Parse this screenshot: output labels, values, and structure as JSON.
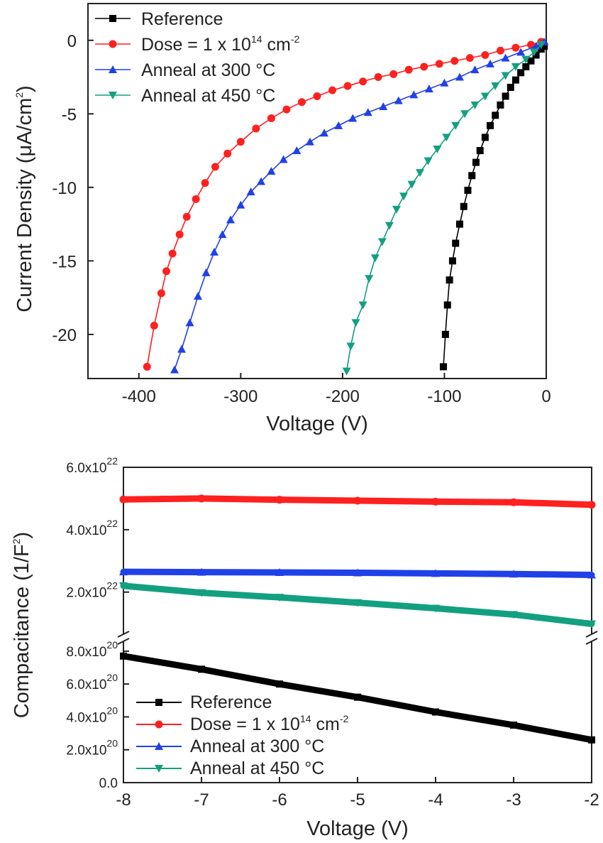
{
  "colors": {
    "reference": "#000000",
    "dose": "#ff2020",
    "anneal300": "#2040e8",
    "anneal450": "#12a080"
  },
  "chart_data": [
    {
      "type": "scatter",
      "xlabel": "Voltage (V)",
      "ylabel_main": "Current Density (μA/cm",
      "ylabel_sup": "2",
      "ylabel_tail": ")",
      "xlim": [
        -450,
        0
      ],
      "ylim": [
        -23,
        2.5
      ],
      "xticks": [
        -400,
        -300,
        -200,
        -100,
        0
      ],
      "xtick_labels": [
        "-400",
        "-300",
        "-200",
        "-100",
        "0"
      ],
      "yticks": [
        0,
        -5,
        -10,
        -15,
        -20
      ],
      "ytick_labels": [
        "0",
        "-5",
        "-10",
        "-15",
        "-20"
      ],
      "legend_position": "top-left",
      "legend": [
        {
          "text": "Reference",
          "sup": "",
          "tail": ""
        },
        {
          "text": "Dose = 1 x 10",
          "sup": "14",
          "tail": " cm",
          "sup2": "-2"
        },
        {
          "text": "Anneal at 300 °C",
          "sup": "",
          "tail": ""
        },
        {
          "text": "Anneal at 450 °C",
          "sup": "",
          "tail": ""
        }
      ],
      "series": [
        {
          "name": "Reference",
          "color_key": "reference",
          "marker": "square",
          "x": [
            -101,
            -99,
            -97,
            -95,
            -92,
            -89,
            -85,
            -81,
            -77,
            -73,
            -69,
            -65,
            -60,
            -55,
            -50,
            -45,
            -40,
            -35,
            -30,
            -25,
            -20,
            -15,
            -10,
            -5,
            -2
          ],
          "y": [
            -22.2,
            -20,
            -18,
            -16.3,
            -15,
            -13.8,
            -12.5,
            -11.3,
            -10.2,
            -9.2,
            -8.3,
            -7.5,
            -6.6,
            -5.8,
            -5.1,
            -4.4,
            -3.8,
            -3.2,
            -2.7,
            -2.2,
            -1.8,
            -1.4,
            -1.0,
            -0.6,
            -0.4
          ]
        },
        {
          "name": "Dose = 1 x 10^14 cm^-2",
          "color_key": "dose",
          "marker": "circle",
          "x": [
            -392,
            -385,
            -378,
            -373,
            -367,
            -360,
            -353,
            -344,
            -335,
            -325,
            -313,
            -300,
            -285,
            -270,
            -255,
            -240,
            -225,
            -210,
            -195,
            -180,
            -165,
            -150,
            -135,
            -120,
            -105,
            -90,
            -75,
            -60,
            -45,
            -30,
            -15,
            -5
          ],
          "y": [
            -22.2,
            -19.4,
            -17.2,
            -15.7,
            -14.5,
            -13.2,
            -12.0,
            -10.8,
            -9.7,
            -8.6,
            -7.7,
            -6.9,
            -6.0,
            -5.3,
            -4.7,
            -4.2,
            -3.8,
            -3.4,
            -3.1,
            -2.8,
            -2.5,
            -2.3,
            -2.0,
            -1.8,
            -1.6,
            -1.4,
            -1.2,
            -1.0,
            -0.7,
            -0.5,
            -0.3,
            -0.1
          ]
        },
        {
          "name": "Anneal at 300 °C",
          "color_key": "anneal300",
          "marker": "triangle-up",
          "x": [
            -365,
            -358,
            -350,
            -342,
            -334,
            -326,
            -318,
            -310,
            -300,
            -290,
            -280,
            -270,
            -258,
            -245,
            -232,
            -218,
            -204,
            -190,
            -175,
            -160,
            -145,
            -130,
            -115,
            -100,
            -85,
            -70,
            -55,
            -40,
            -25,
            -10,
            -2
          ],
          "y": [
            -22.4,
            -21.0,
            -19.2,
            -17.4,
            -15.8,
            -14.4,
            -13.2,
            -12.2,
            -11.2,
            -10.3,
            -9.6,
            -8.9,
            -8.1,
            -7.5,
            -6.9,
            -6.3,
            -5.8,
            -5.3,
            -4.9,
            -4.5,
            -4.1,
            -3.7,
            -3.3,
            -2.9,
            -2.5,
            -2.0,
            -1.6,
            -1.2,
            -0.8,
            -0.4,
            -0.1
          ]
        },
        {
          "name": "Anneal at 450 °C",
          "color_key": "anneal450",
          "marker": "triangle-down",
          "x": [
            -196,
            -192,
            -187,
            -180,
            -174,
            -168,
            -161,
            -154,
            -147,
            -140,
            -132,
            -124,
            -116,
            -107,
            -98,
            -89,
            -80,
            -70,
            -60,
            -50,
            -40,
            -30,
            -20,
            -12,
            -5
          ],
          "y": [
            -22.5,
            -20.8,
            -19.2,
            -18.0,
            -16.2,
            -14.8,
            -13.7,
            -12.6,
            -11.5,
            -10.6,
            -9.8,
            -9.0,
            -8.2,
            -7.4,
            -6.6,
            -5.8,
            -5.0,
            -4.4,
            -3.8,
            -3.1,
            -2.4,
            -1.8,
            -1.3,
            -0.8,
            -0.3
          ]
        }
      ]
    },
    {
      "type": "scatter",
      "xlabel": "Voltage (V)",
      "ylabel_main": "Compacitance (1/F",
      "ylabel_sup": "2",
      "ylabel_tail": ")",
      "xlim": [
        -8,
        -2
      ],
      "xticks": [
        -8,
        -7,
        -6,
        -5,
        -4,
        -3,
        -2
      ],
      "xtick_labels": [
        "-8",
        "-7",
        "-6",
        "-5",
        "-4",
        "-3",
        "-2"
      ],
      "broken_y_axis": true,
      "upper_segment": {
        "ylim": [
          6.5e+21,
          6e+22
        ],
        "ticks": [
          2e+22,
          4e+22,
          6e+22
        ],
        "tick_labels": [
          {
            "base": "2.0x10",
            "exp": "22"
          },
          {
            "base": "4.0x10",
            "exp": "22"
          },
          {
            "base": "6.0x10",
            "exp": "22"
          }
        ]
      },
      "lower_segment": {
        "ylim": [
          0,
          8.6e+20
        ],
        "ticks": [
          0,
          2e+20,
          4e+20,
          6e+20,
          8e+20
        ],
        "tick_labels": [
          {
            "base": "0.0",
            "exp": ""
          },
          {
            "base": "2.0x10",
            "exp": "20"
          },
          {
            "base": "4.0x10",
            "exp": "20"
          },
          {
            "base": "6.0x10",
            "exp": "20"
          },
          {
            "base": "8.0x10",
            "exp": "20"
          }
        ]
      },
      "legend_position": "bottom-left",
      "legend": [
        {
          "text": "Reference",
          "sup": "",
          "tail": ""
        },
        {
          "text": "Dose = 1 x 10",
          "sup": "14",
          "tail": " cm",
          "sup2": "-2"
        },
        {
          "text": "Anneal at 300 °C",
          "sup": "",
          "tail": ""
        },
        {
          "text": "Anneal at 450 °C",
          "sup": "",
          "tail": ""
        }
      ],
      "series": [
        {
          "name": "Reference",
          "color_key": "reference",
          "marker": "square",
          "segment": "lower",
          "x": [
            -8,
            -7,
            -6,
            -5,
            -4,
            -3,
            -2
          ],
          "y": [
            7.7e+20,
            6.9e+20,
            6e+20,
            5.2e+20,
            4.3e+20,
            3.5e+20,
            2.6e+20
          ]
        },
        {
          "name": "Dose = 1 x 10^14 cm^-2",
          "color_key": "dose",
          "marker": "circle",
          "segment": "upper",
          "x": [
            -8,
            -7,
            -6,
            -5,
            -4,
            -3,
            -2
          ],
          "y": [
            4.97e+22,
            5e+22,
            4.96e+22,
            4.93e+22,
            4.9e+22,
            4.88e+22,
            4.8e+22
          ]
        },
        {
          "name": "Anneal at 300 °C",
          "color_key": "anneal300",
          "marker": "triangle-up",
          "segment": "upper",
          "x": [
            -8,
            -7,
            -6,
            -5,
            -4,
            -3,
            -2
          ],
          "y": [
            2.65e+22,
            2.64e+22,
            2.63e+22,
            2.62e+22,
            2.6e+22,
            2.58e+22,
            2.55e+22
          ]
        },
        {
          "name": "Anneal at 450 °C",
          "color_key": "anneal450",
          "marker": "triangle-down",
          "segment": "upper",
          "x": [
            -8,
            -7,
            -6,
            -5,
            -4,
            -3,
            -2
          ],
          "y": [
            2.2e+22,
            1.98e+22,
            1.83e+22,
            1.66e+22,
            1.48e+22,
            1.28e+22,
            9.8e+21
          ]
        }
      ]
    }
  ]
}
